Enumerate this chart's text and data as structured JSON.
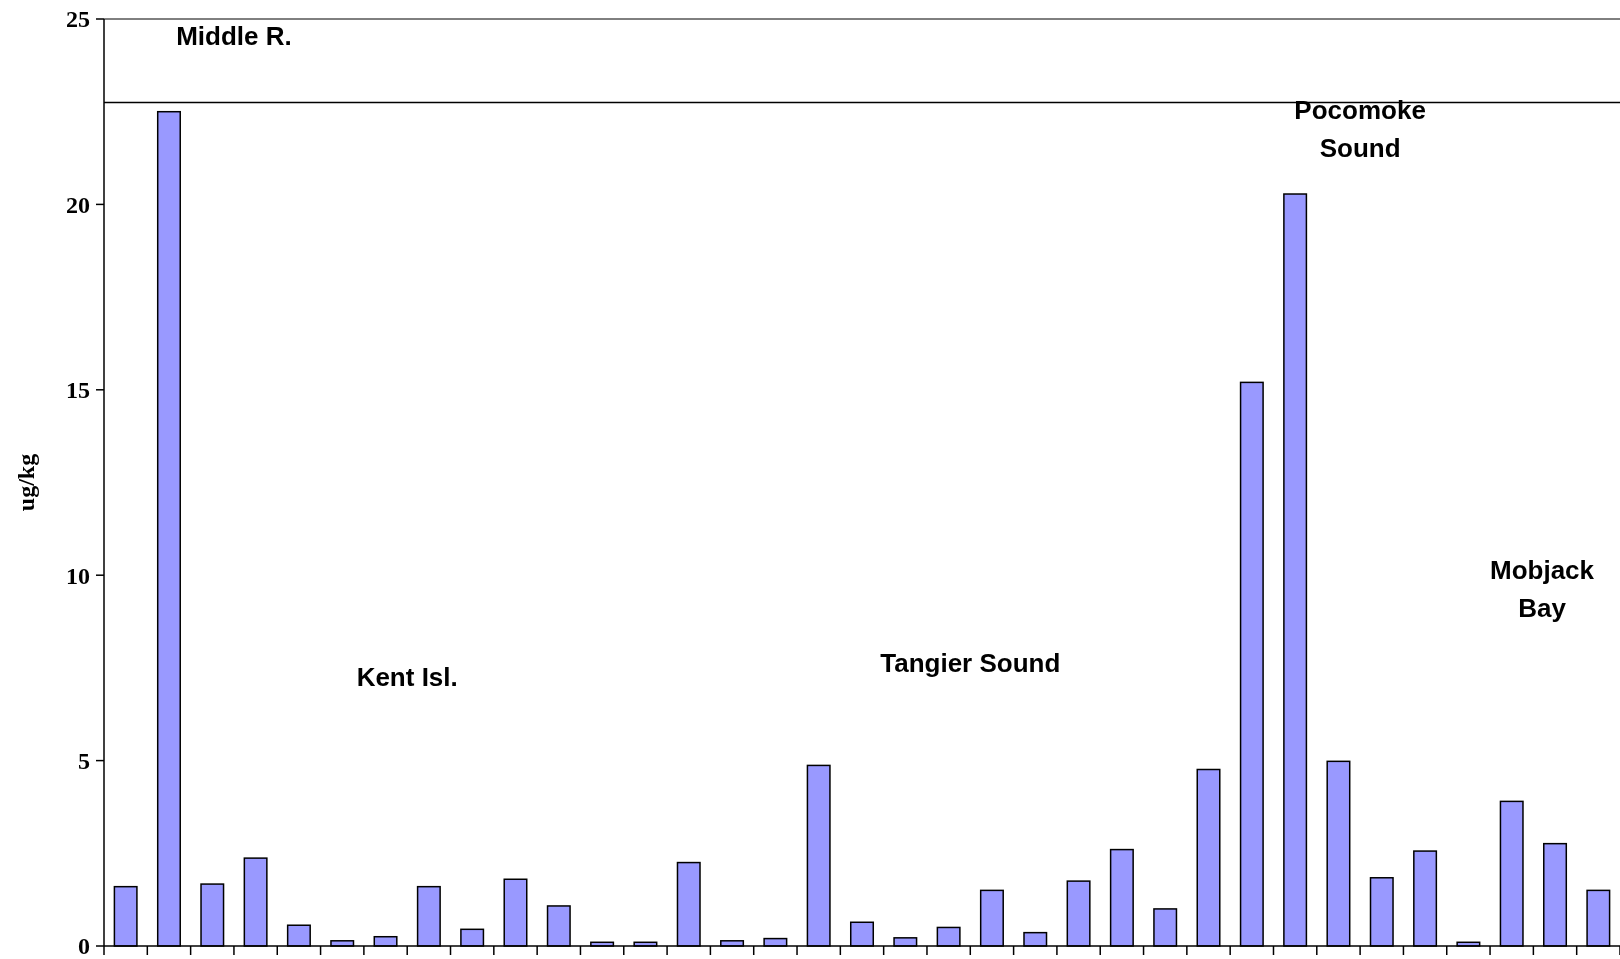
{
  "chart_data": {
    "type": "bar",
    "ylabel": "ug/kg",
    "categories": [
      null,
      null,
      null,
      null,
      null,
      null,
      null,
      null,
      null,
      null,
      null,
      null,
      null,
      null,
      null,
      null,
      null,
      null,
      null,
      null,
      null,
      null,
      null,
      null,
      null,
      null,
      null,
      null,
      null,
      null,
      null,
      null,
      null,
      null,
      null
    ],
    "values": [
      1.6,
      22.5,
      1.67,
      2.37,
      0.56,
      0.14,
      0.25,
      1.6,
      0.45,
      1.8,
      1.08,
      0.1,
      0.1,
      2.25,
      0.14,
      0.2,
      4.87,
      0.64,
      0.22,
      0.5,
      1.5,
      0.36,
      1.75,
      2.6,
      1.0,
      4.76,
      15.2,
      20.28,
      4.98,
      1.84,
      2.56,
      0.1,
      3.9,
      2.76,
      1.5
    ],
    "color": "#9999ff",
    "ylim": [
      0,
      25
    ],
    "yticks": [
      0,
      5,
      10,
      15,
      20,
      25
    ],
    "ref_lines": [
      {
        "axis": "y",
        "value": 22.75,
        "color": "#000000"
      }
    ],
    "annotations": [
      "Middle R.",
      "Kent Isl.",
      "Tangier Sound",
      "Pocomoke Sound",
      "Mobjack Bay"
    ]
  }
}
